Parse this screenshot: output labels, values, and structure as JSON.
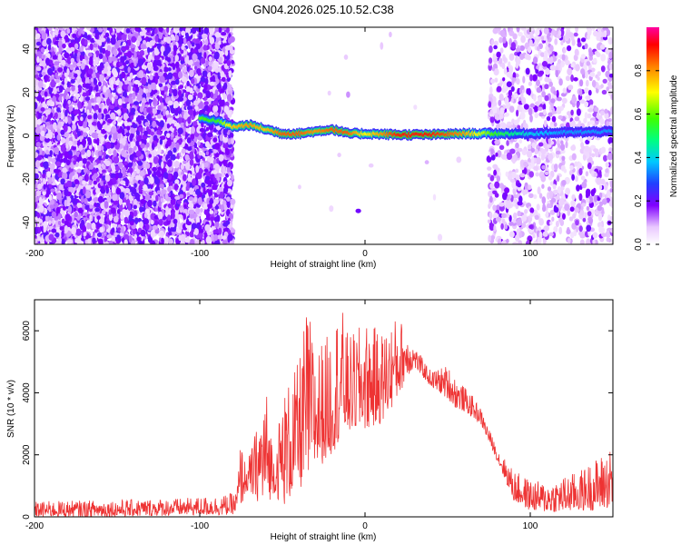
{
  "title": "GN04.2026.025.10.52.C38",
  "chart_data": [
    {
      "type": "heatmap",
      "xlabel": "Height of straight line (km)",
      "ylabel": "Frequency (Hz)",
      "xlim": [
        -200,
        150
      ],
      "ylim": [
        -50,
        50
      ],
      "xticks": [
        -200,
        -100,
        0,
        100
      ],
      "yticks": [
        -40,
        -20,
        0,
        20,
        40
      ],
      "colorbar": {
        "label": "Normalized spectral amplitude",
        "range": [
          0,
          1
        ],
        "ticks": [
          0.0,
          0.2,
          0.4,
          0.6,
          0.8
        ]
      },
      "ridge": {
        "x": [
          -100,
          -90,
          -80,
          -70,
          -60,
          -50,
          -40,
          -30,
          -20,
          -10,
          0,
          20,
          40,
          60,
          80,
          100,
          120,
          150
        ],
        "freq": [
          8,
          7,
          4,
          5,
          3,
          1,
          1,
          2,
          3,
          1,
          1,
          0.5,
          0.5,
          1,
          1,
          1,
          1.5,
          2
        ],
        "amplitude": [
          0.6,
          0.55,
          0.75,
          0.8,
          0.75,
          0.85,
          0.85,
          0.8,
          0.85,
          0.85,
          0.7,
          0.9,
          0.9,
          0.8,
          0.55,
          0.4,
          0.35,
          0.35
        ]
      },
      "noise_regions": [
        {
          "x_range": [
            -200,
            -80
          ],
          "level": "strong"
        },
        {
          "x_range": [
            -80,
            75
          ],
          "level": "sparse"
        },
        {
          "x_range": [
            75,
            150
          ],
          "level": "moderate"
        }
      ]
    },
    {
      "type": "line",
      "xlabel": "Height of straight line (km)",
      "ylabel": "SNR (10 * v/v)",
      "xlim": [
        -200,
        150
      ],
      "ylim": [
        0,
        7000
      ],
      "xticks": [
        -200,
        -100,
        0,
        100
      ],
      "yticks": [
        0,
        2000,
        4000,
        6000
      ],
      "color": "#ee3333",
      "envelope": {
        "x": [
          -200,
          -150,
          -110,
          -85,
          -78,
          -75,
          -72,
          -65,
          -60,
          -55,
          -50,
          -40,
          -35,
          -30,
          -20,
          -15,
          -10,
          0,
          10,
          20,
          25,
          30,
          40,
          50,
          55,
          60,
          65,
          70,
          80,
          90,
          100,
          110,
          120,
          130,
          140,
          150
        ],
        "low": [
          0,
          0,
          50,
          50,
          100,
          300,
          800,
          500,
          300,
          800,
          300,
          900,
          1000,
          1500,
          2000,
          2500,
          2700,
          2800,
          3000,
          3800,
          4500,
          4800,
          4200,
          3800,
          3500,
          3400,
          3200,
          3000,
          1800,
          500,
          200,
          150,
          150,
          200,
          200,
          300
        ],
        "high": [
          500,
          550,
          600,
          700,
          800,
          2600,
          1600,
          3000,
          4300,
          2000,
          4000,
          5000,
          6900,
          5500,
          6000,
          7000,
          5800,
          6300,
          6000,
          6500,
          6100,
          5500,
          4700,
          4900,
          4500,
          4200,
          3900,
          3500,
          2200,
          1500,
          1200,
          1100,
          1300,
          1500,
          1900,
          2300
        ]
      }
    }
  ]
}
